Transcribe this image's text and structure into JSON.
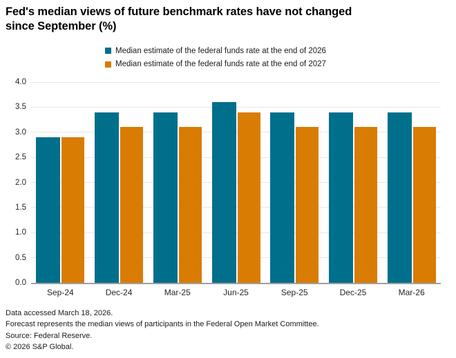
{
  "title": {
    "full": "Fed's median views of future benchmark rates have not changed since September (%)",
    "line1": "Fed's median views of future benchmark rates have not changed",
    "line2": "since September (%)"
  },
  "colors": {
    "series_2026": "#006f8c",
    "series_2027": "#d97c04",
    "gridline": "#e7e7e7",
    "axis_line": "#9f9f9f",
    "text": "#1a1a1a"
  },
  "chart_data": {
    "type": "bar",
    "title": "Fed's median views of future benchmark rates have not changed since September (%)",
    "categories": [
      "Sep-24",
      "Dec-24",
      "Mar-25",
      "Jun-25",
      "Sep-25",
      "Dec-25",
      "Mar-26"
    ],
    "series": [
      {
        "name": "Median estimate of the federal funds rate at the end of 2026",
        "color": "#006f8c",
        "values": [
          2.9,
          3.4,
          3.4,
          3.6,
          3.4,
          3.4,
          3.4
        ]
      },
      {
        "name": "Median estimate of the federal funds rate at the end of 2027",
        "color": "#d97c04",
        "values": [
          2.9,
          3.1,
          3.1,
          3.4,
          3.1,
          3.1,
          3.1
        ]
      }
    ],
    "xlabel": "",
    "ylabel": "",
    "ylim": [
      0,
      4.0
    ],
    "ytick_values": [
      0,
      0.5,
      1,
      1.5,
      2,
      2.5,
      3,
      3.5,
      4
    ],
    "ytick_labels": [
      "0.0",
      "0.5",
      "1.0",
      "1.5",
      "2.0",
      "2.5",
      "3.0",
      "3.5",
      "4.0"
    ],
    "grid": true,
    "legend_position": "top-center"
  },
  "footer": {
    "lines": [
      "Data accessed March 18, 2026.",
      "Forecast represents the median views of participants in the Federal Open Market Committee.",
      "Source: Federal Reserve.",
      "© 2026 S&P Global."
    ]
  }
}
